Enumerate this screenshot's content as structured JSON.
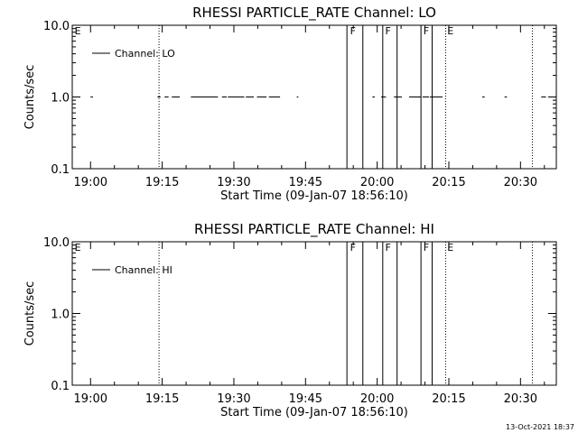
{
  "chart_data": [
    {
      "type": "line",
      "title": "RHESSI PARTICLE_RATE Channel: LO",
      "xlabel": "Start Time (09-Jan-07 18:56:10)",
      "ylabel": "Counts/sec",
      "ylim": [
        0.1,
        10.0
      ],
      "yscale": "log",
      "y_ticks": [
        {
          "value": 0.1,
          "label": "0.1"
        },
        {
          "value": 1.0,
          "label": "1.0"
        },
        {
          "value": 10.0,
          "label": "10.0"
        }
      ],
      "xlim": [
        "18:56:10",
        "20:37:30"
      ],
      "x_ticks": [
        "19:00",
        "19:15",
        "19:30",
        "19:45",
        "20:00",
        "20:15",
        "20:30"
      ],
      "legend": {
        "position": "top-left",
        "label": "Channel: LO"
      },
      "series": [
        {
          "name": "Channel: LO",
          "segments": [
            {
              "y": 1.0,
              "x": [
                "19:00:00",
                "19:00:30"
              ]
            },
            {
              "y": 1.0,
              "x": [
                "19:14:00",
                "19:14:40"
              ]
            },
            {
              "y": 1.0,
              "x": [
                "19:15:30",
                "19:16:20"
              ]
            },
            {
              "y": 1.0,
              "x": [
                "19:17:00",
                "19:18:40"
              ]
            },
            {
              "y": 1.0,
              "x": [
                "19:21:00",
                "19:26:40"
              ]
            },
            {
              "y": 1.0,
              "x": [
                "19:27:30",
                "19:28:30"
              ]
            },
            {
              "y": 1.0,
              "x": [
                "19:28:45",
                "19:32:10"
              ]
            },
            {
              "y": 1.0,
              "x": [
                "19:32:30",
                "19:34:10"
              ]
            },
            {
              "y": 1.0,
              "x": [
                "19:34:50",
                "19:36:50"
              ]
            },
            {
              "y": 1.0,
              "x": [
                "19:37:20",
                "19:39:40"
              ]
            },
            {
              "y": 1.0,
              "x": [
                "19:43:10",
                "19:43:30"
              ]
            },
            {
              "y": 1.0,
              "x": [
                "19:59:00",
                "19:59:30"
              ]
            },
            {
              "y": 1.0,
              "x": [
                "20:00:50",
                "20:01:50"
              ]
            },
            {
              "y": 1.0,
              "x": [
                "20:03:30",
                "20:05:10"
              ]
            },
            {
              "y": 1.0,
              "x": [
                "20:06:40",
                "20:09:10"
              ]
            },
            {
              "y": 1.0,
              "x": [
                "20:09:30",
                "20:10:50"
              ]
            },
            {
              "y": 1.0,
              "x": [
                "20:11:00",
                "20:13:40"
              ]
            },
            {
              "y": 1.0,
              "x": [
                "20:22:00",
                "20:22:30"
              ]
            },
            {
              "y": 1.0,
              "x": [
                "20:26:40",
                "20:27:10"
              ]
            },
            {
              "y": 1.0,
              "x": [
                "20:34:20",
                "20:35:20"
              ]
            }
          ]
        }
      ],
      "annotations": [
        {
          "kind": "dotted",
          "x": "19:14:20"
        },
        {
          "kind": "dotted",
          "x": "20:14:20"
        },
        {
          "kind": "dotted",
          "x": "20:32:30"
        },
        {
          "kind": "solid",
          "x": "19:53:40"
        },
        {
          "kind": "solid",
          "x": "19:57:00"
        },
        {
          "kind": "solid",
          "x": "20:01:10"
        },
        {
          "kind": "solid",
          "x": "20:04:10"
        },
        {
          "kind": "solid",
          "x": "20:09:10"
        },
        {
          "kind": "solid",
          "x": "20:11:30"
        }
      ],
      "markers": [
        {
          "text": "E",
          "x": "18:56:40"
        },
        {
          "text": "F",
          "x": "19:54:20"
        },
        {
          "text": "F",
          "x": "20:01:40"
        },
        {
          "text": "F",
          "x": "20:09:40"
        },
        {
          "text": "E",
          "x": "20:14:40"
        }
      ]
    },
    {
      "type": "line",
      "title": "RHESSI PARTICLE_RATE Channel: HI",
      "xlabel": "Start Time (09-Jan-07 18:56:10)",
      "ylabel": "Counts/sec",
      "ylim": [
        0.1,
        10.0
      ],
      "yscale": "log",
      "y_ticks": [
        {
          "value": 0.1,
          "label": "0.1"
        },
        {
          "value": 1.0,
          "label": "1.0"
        },
        {
          "value": 10.0,
          "label": "10.0"
        }
      ],
      "xlim": [
        "18:56:10",
        "20:37:30"
      ],
      "x_ticks": [
        "19:00",
        "19:15",
        "19:30",
        "19:45",
        "20:00",
        "20:15",
        "20:30"
      ],
      "legend": {
        "position": "top-left",
        "label": "Channel: HI"
      },
      "series": [
        {
          "name": "Channel: HI",
          "segments": []
        }
      ],
      "annotations": [
        {
          "kind": "dotted",
          "x": "19:14:20"
        },
        {
          "kind": "dotted",
          "x": "20:14:20"
        },
        {
          "kind": "dotted",
          "x": "20:32:30"
        },
        {
          "kind": "solid",
          "x": "19:53:40"
        },
        {
          "kind": "solid",
          "x": "19:57:00"
        },
        {
          "kind": "solid",
          "x": "20:01:10"
        },
        {
          "kind": "solid",
          "x": "20:04:10"
        },
        {
          "kind": "solid",
          "x": "20:09:10"
        },
        {
          "kind": "solid",
          "x": "20:11:30"
        }
      ],
      "markers": [
        {
          "text": "E",
          "x": "18:56:40"
        },
        {
          "text": "F",
          "x": "19:54:20"
        },
        {
          "text": "F",
          "x": "20:01:40"
        },
        {
          "text": "F",
          "x": "20:09:40"
        },
        {
          "text": "E",
          "x": "20:14:40"
        }
      ]
    }
  ],
  "footer": {
    "timestamp": "13-Oct-2021 18:37"
  }
}
